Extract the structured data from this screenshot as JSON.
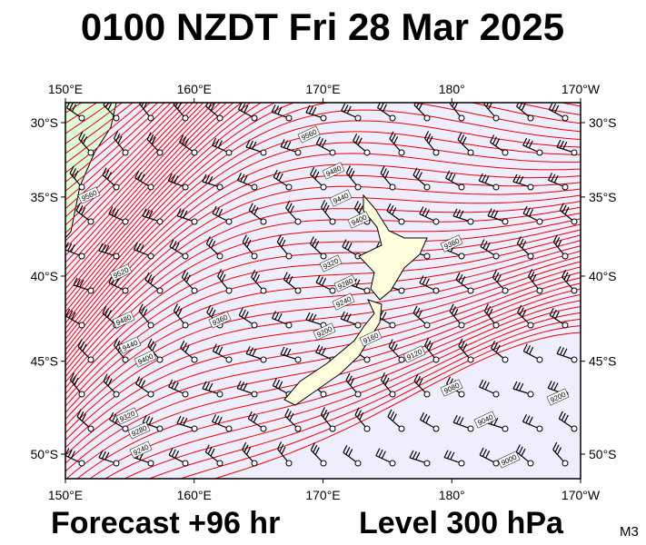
{
  "header": {
    "title": "0100 NZDT Fri 28 Mar 2025"
  },
  "map": {
    "longitudes": [
      {
        "value": 150,
        "label": "150°E"
      },
      {
        "value": 160,
        "label": "160°E"
      },
      {
        "value": 170,
        "label": "170°E"
      },
      {
        "value": 180,
        "label": "180°"
      },
      {
        "value": 190,
        "label": "170°W"
      }
    ],
    "latitudes": [
      {
        "value": -30,
        "label": "30°S"
      },
      {
        "value": -35,
        "label": "35°S"
      },
      {
        "value": -40,
        "label": "40°S"
      },
      {
        "value": -45,
        "label": "45°S"
      },
      {
        "value": -50,
        "label": "50°S"
      }
    ],
    "contour_labels": [
      "9560",
      "9560",
      "9480",
      "9440",
      "9400",
      "9360",
      "9320",
      "9280",
      "9240",
      "9200",
      "9160",
      "9120",
      "9080",
      "9040",
      "9000",
      "9200",
      "9520",
      "9480",
      "9440",
      "9400",
      "9360",
      "9320",
      "9280",
      "9240"
    ]
  },
  "footer": {
    "forecast": "Forecast +96 hr",
    "level": "Level 300 hPa",
    "model": "M3"
  }
}
